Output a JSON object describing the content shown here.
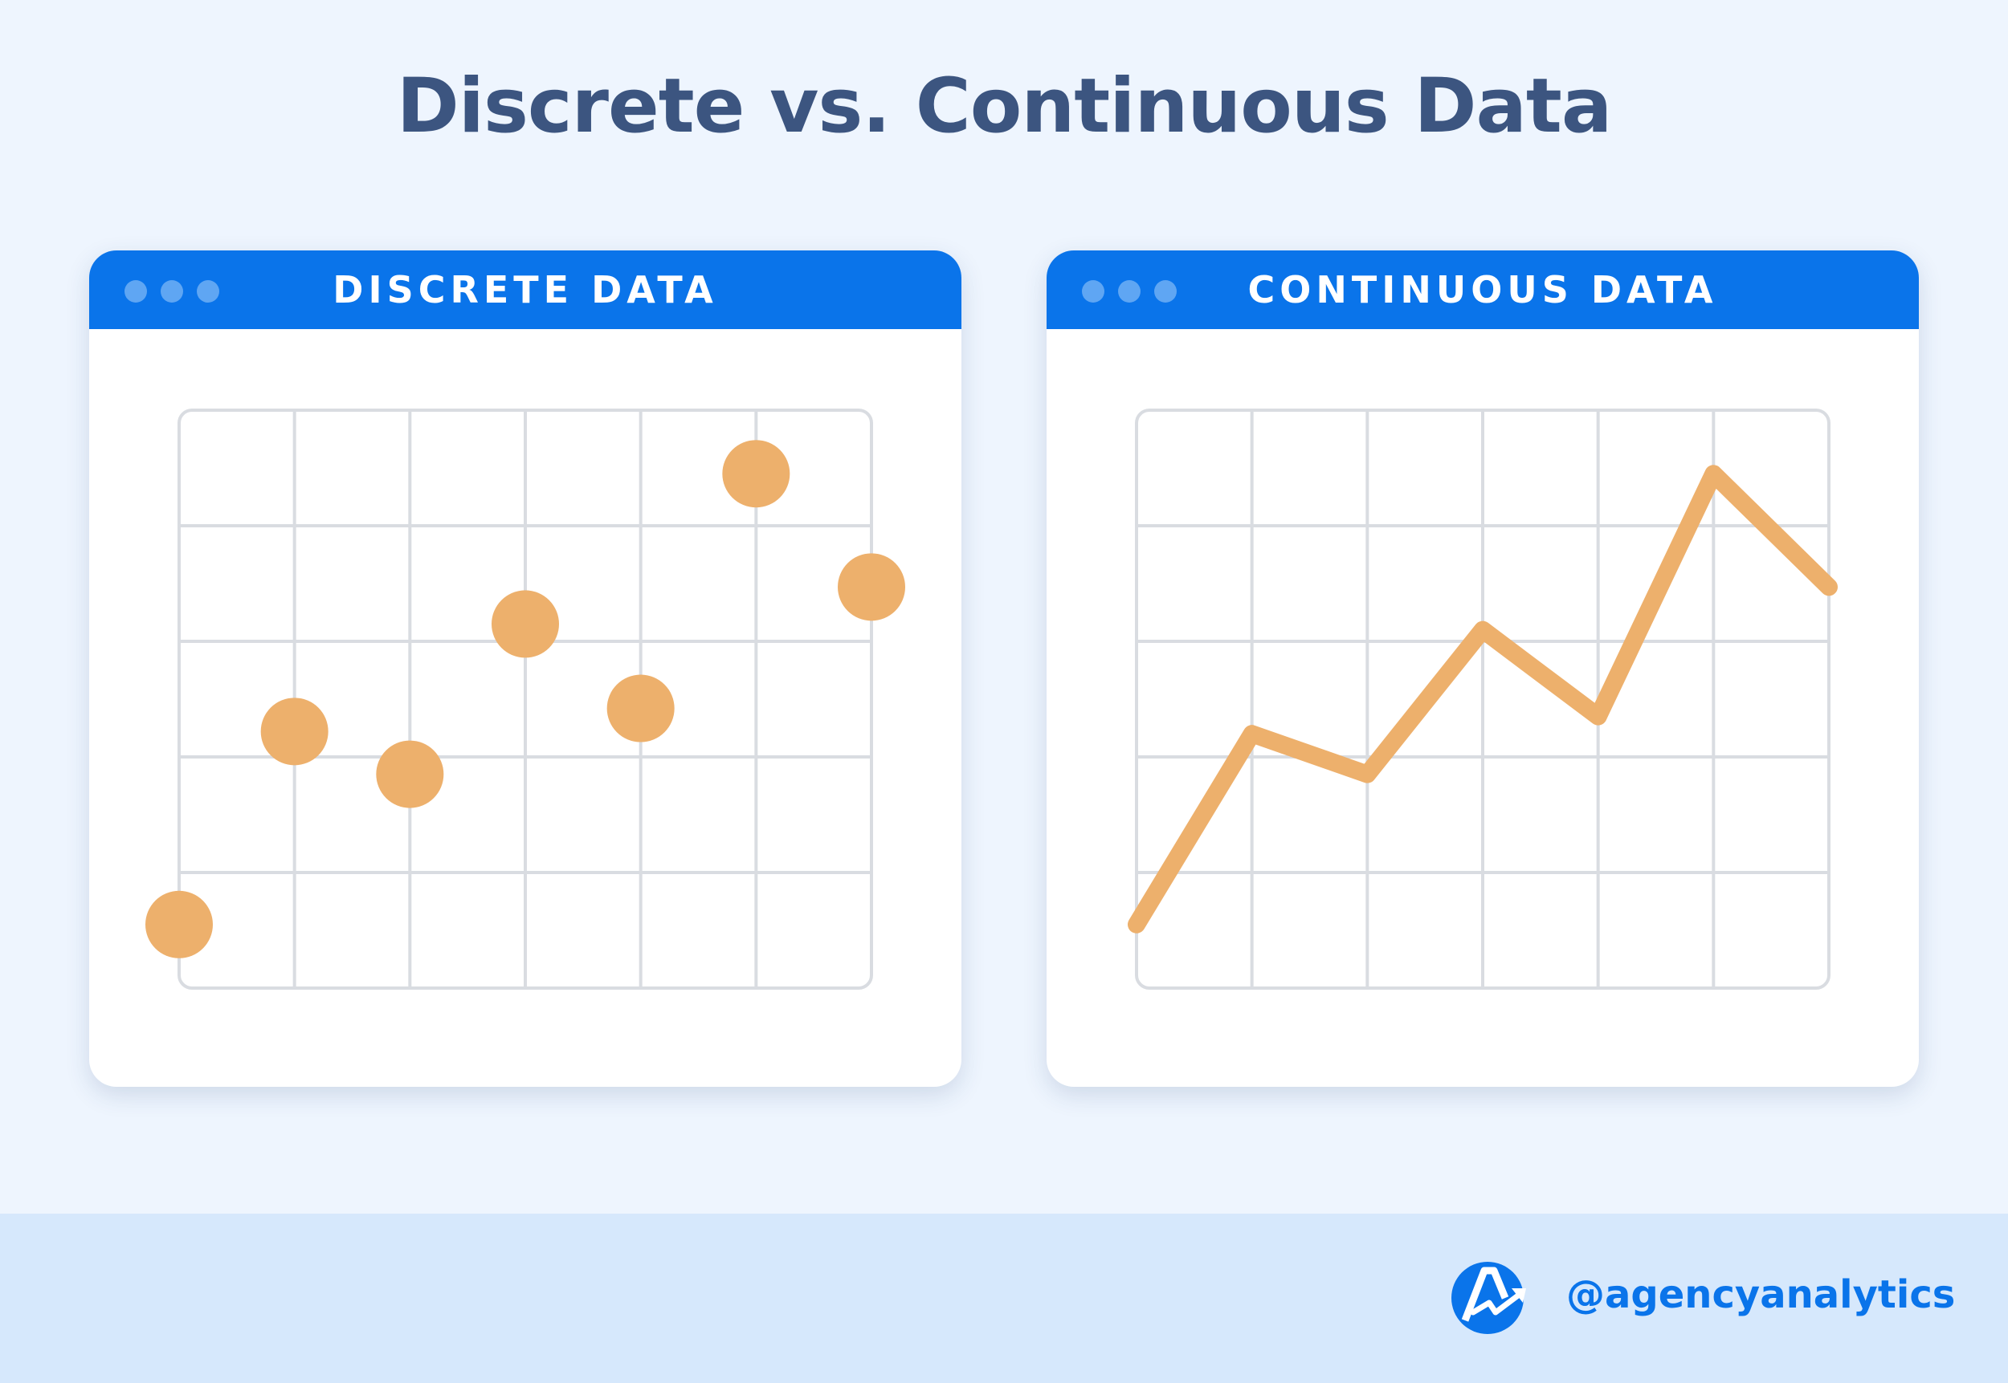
{
  "page": {
    "title": "Discrete vs. Continuous Data"
  },
  "colors": {
    "accent": "#0a74ea",
    "title_text": "#3c5580",
    "marker": "#edb06c",
    "grid": "#d9dce1",
    "background": "#eef5fe",
    "footer": "#d6e8fc"
  },
  "footer": {
    "handle": "@agencyanalytics",
    "logo_icon": "agencyanalytics-logo-icon"
  },
  "chart_data": [
    {
      "type": "scatter",
      "window_title": "DISCRETE DATA",
      "grid": true,
      "xlim": [
        0,
        6
      ],
      "ylim": [
        0,
        5
      ],
      "points": [
        {
          "x": 0,
          "y": 0.55
        },
        {
          "x": 1,
          "y": 2.22
        },
        {
          "x": 2,
          "y": 1.85
        },
        {
          "x": 3,
          "y": 3.15
        },
        {
          "x": 4,
          "y": 2.42
        },
        {
          "x": 5,
          "y": 4.45
        },
        {
          "x": 6,
          "y": 3.47
        }
      ]
    },
    {
      "type": "line",
      "window_title": "CONTINUOUS DATA",
      "grid": true,
      "xlim": [
        0,
        6
      ],
      "ylim": [
        0,
        5
      ],
      "points": [
        {
          "x": 0,
          "y": 0.55
        },
        {
          "x": 1,
          "y": 2.2
        },
        {
          "x": 2,
          "y": 1.85
        },
        {
          "x": 3,
          "y": 3.1
        },
        {
          "x": 4,
          "y": 2.35
        },
        {
          "x": 5,
          "y": 4.45
        },
        {
          "x": 6,
          "y": 3.47
        }
      ]
    }
  ]
}
